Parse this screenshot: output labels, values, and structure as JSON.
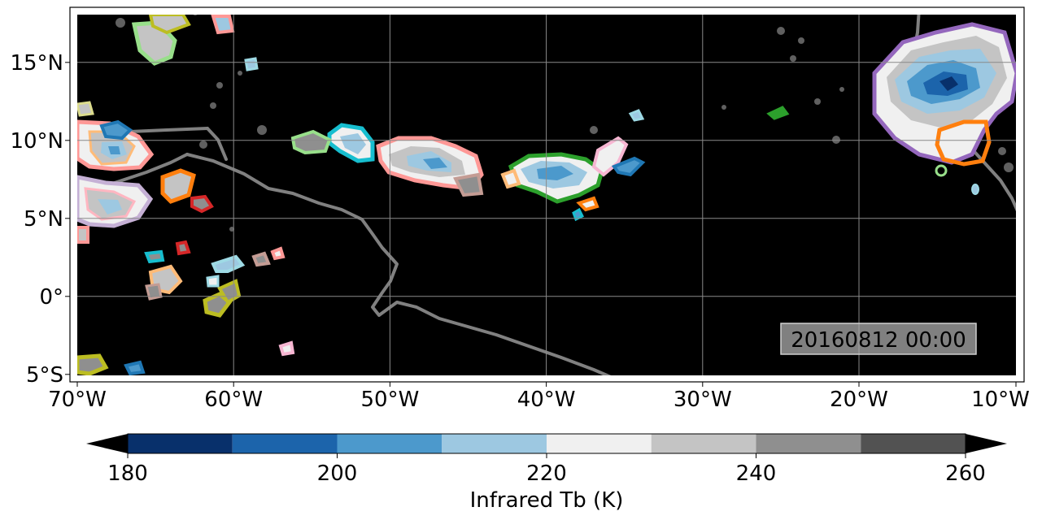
{
  "map": {
    "timestamp": "20160812 00:00",
    "lon_ticks": [
      "70°W",
      "60°W",
      "50°W",
      "40°W",
      "30°W",
      "20°W",
      "10°W"
    ],
    "lat_ticks": [
      "15°N",
      "10°N",
      "5°N",
      "0°",
      "5°S"
    ],
    "background_color": "#000000",
    "coastline_color": "#808080",
    "grid_color": "#8a8a8a"
  },
  "colorbar": {
    "label": "Infrared Tb (K)",
    "ticks": [
      "180",
      "200",
      "220",
      "240",
      "260"
    ],
    "bins": [
      {
        "from": 180,
        "to": 190,
        "color": "#08306b"
      },
      {
        "from": 190,
        "to": 200,
        "color": "#1c64ab"
      },
      {
        "from": 200,
        "to": 210,
        "color": "#4c99cc"
      },
      {
        "from": 210,
        "to": 220,
        "color": "#9dc8e1"
      },
      {
        "from": 220,
        "to": 230,
        "color": "#f0f0f0"
      },
      {
        "from": 230,
        "to": 240,
        "color": "#c4c4c4"
      },
      {
        "from": 240,
        "to": 250,
        "color": "#8f8f8f"
      },
      {
        "from": 250,
        "to": 260,
        "color": "#525252"
      }
    ],
    "under_color": "#000000",
    "over_color": "#000000"
  }
}
